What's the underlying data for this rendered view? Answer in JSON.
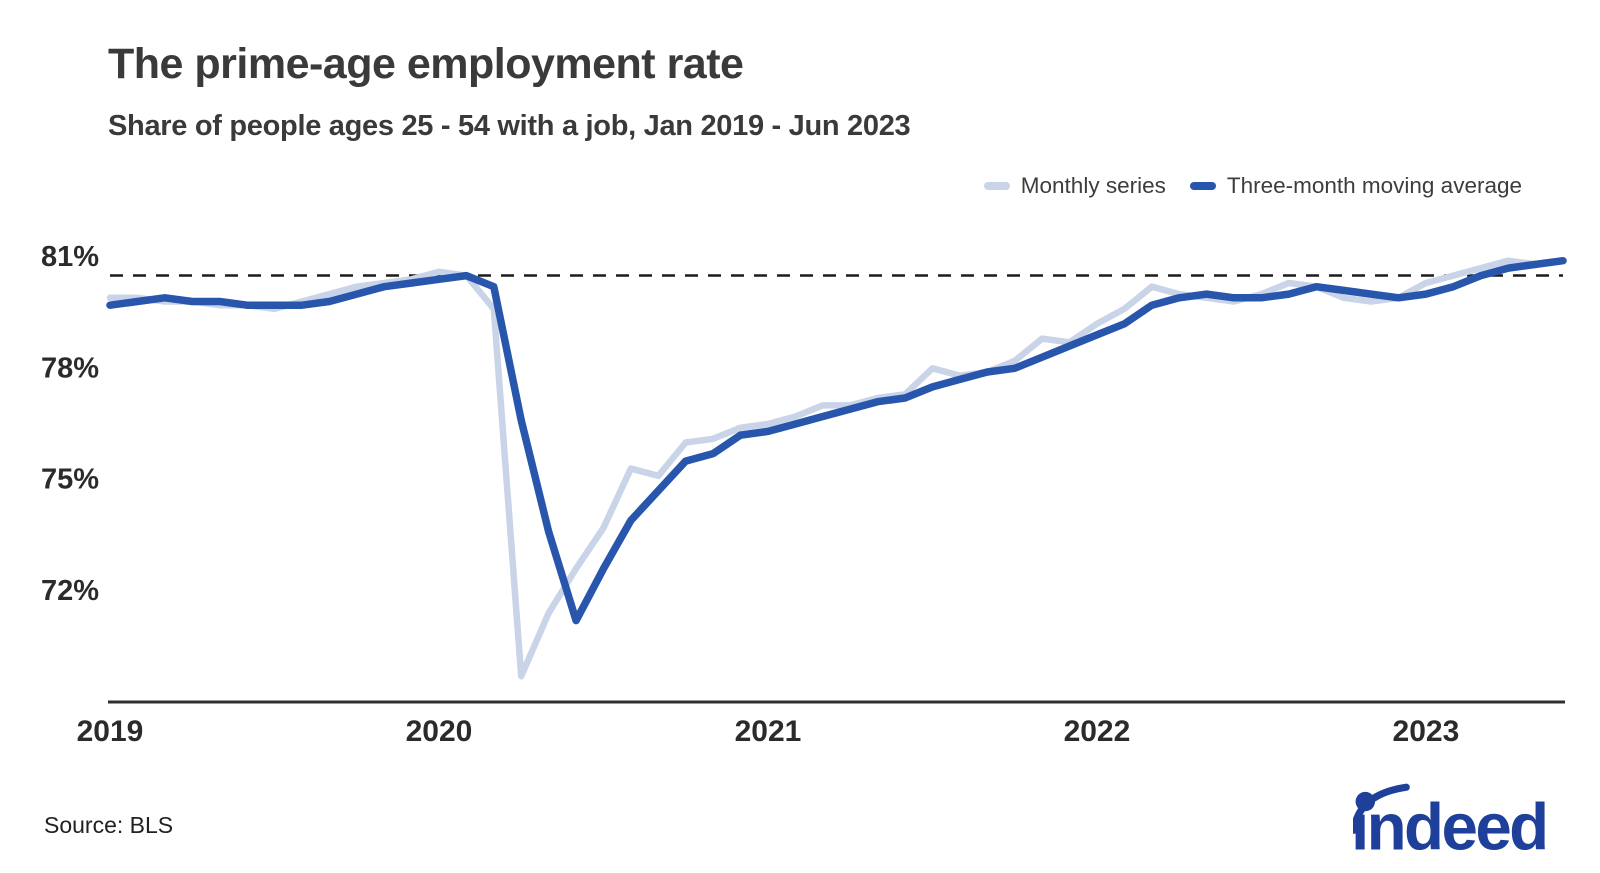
{
  "title": "The prime-age employment rate",
  "subtitle": "Share of people ages 25 - 54 with a job, Jan 2019 - Jun 2023",
  "source": "Source: BLS",
  "brand": {
    "logo_text": "indeed"
  },
  "legend": [
    {
      "label": "Monthly series",
      "color": "#c9d4e8"
    },
    {
      "label": "Three-month moving average",
      "color": "#2856ac"
    }
  ],
  "colors": {
    "monthly_line": "#c9d4e8",
    "moving_average_line": "#2856ac",
    "reference_line": "#1c1c1c",
    "axis_line": "#2f2f2f",
    "tick_text": "#2b2b2b",
    "logo_blue": "#1e409a"
  },
  "chart_data": {
    "type": "line",
    "title": "The prime-age employment rate",
    "subtitle": "Share of people ages 25 - 54 with a job, Jan 2019 - Jun 2023",
    "x_unit": "month",
    "x_start": "Jan 2019",
    "x_end": "Jun 2023",
    "n_points": 54,
    "x_tick_labels": [
      "2019",
      "2020",
      "2021",
      "2022",
      "2023"
    ],
    "y_ticks": [
      81,
      78,
      75,
      72
    ],
    "y_tick_labels": [
      "81%",
      "78%",
      "75%",
      "72%"
    ],
    "ylim": [
      69.0,
      81.6
    ],
    "grid": false,
    "legend_position": "top-right",
    "reference_line": {
      "value": 80.5,
      "style": "dashed"
    },
    "series": [
      {
        "name": "Monthly series",
        "color": "#c9d4e8",
        "values": [
          79.9,
          79.9,
          79.8,
          79.8,
          79.7,
          79.7,
          79.6,
          79.8,
          80.0,
          80.2,
          80.3,
          80.4,
          80.6,
          80.5,
          79.6,
          69.7,
          71.4,
          72.6,
          73.7,
          75.3,
          75.1,
          76.0,
          76.1,
          76.4,
          76.5,
          76.7,
          77.0,
          77.0,
          77.2,
          77.3,
          78.0,
          77.8,
          77.9,
          78.2,
          78.8,
          78.7,
          79.2,
          79.6,
          80.2,
          80.0,
          79.9,
          79.8,
          80.0,
          80.3,
          80.2,
          79.9,
          79.8,
          79.9,
          80.3,
          80.5,
          80.7,
          80.9,
          80.8,
          80.9
        ]
      },
      {
        "name": "Three-month moving average",
        "color": "#2856ac",
        "values": [
          79.7,
          79.8,
          79.9,
          79.8,
          79.8,
          79.7,
          79.7,
          79.7,
          79.8,
          80.0,
          80.2,
          80.3,
          80.4,
          80.5,
          80.2,
          76.6,
          73.6,
          71.2,
          72.6,
          73.9,
          74.7,
          75.5,
          75.7,
          76.2,
          76.3,
          76.5,
          76.7,
          76.9,
          77.1,
          77.2,
          77.5,
          77.7,
          77.9,
          78.0,
          78.3,
          78.6,
          78.9,
          79.2,
          79.7,
          79.9,
          80.0,
          79.9,
          79.9,
          80.0,
          80.2,
          80.1,
          80.0,
          79.9,
          80.0,
          80.2,
          80.5,
          80.7,
          80.8,
          80.9
        ]
      }
    ]
  }
}
